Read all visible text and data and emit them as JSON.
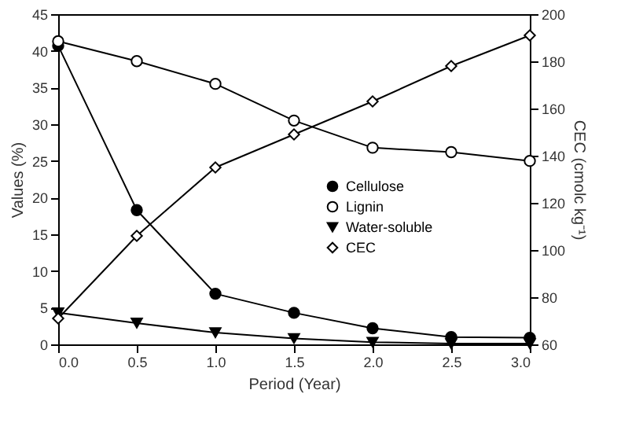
{
  "chart_data": {
    "type": "line",
    "xlabel": "Period (Year)",
    "ylabel": "Values (%)",
    "y2label": "CEC (cmolc kg⁻¹)",
    "x": [
      0,
      0.5,
      1,
      1.5,
      2,
      2.5,
      3
    ],
    "xlim": [
      0,
      3
    ],
    "xticks": [
      {
        "value": 0,
        "label": "0.0"
      },
      {
        "value": 0.5,
        "label": "0.5"
      },
      {
        "value": 1,
        "label": "1.0"
      },
      {
        "value": 1.5,
        "label": "1.5"
      },
      {
        "value": 2,
        "label": "2.0"
      },
      {
        "value": 2.5,
        "label": "2.5"
      },
      {
        "value": 3,
        "label": "3.0"
      }
    ],
    "ylim": [
      0,
      45
    ],
    "yticks": [
      0,
      5,
      10,
      15,
      20,
      25,
      30,
      35,
      40,
      45
    ],
    "y2lim": [
      60,
      200
    ],
    "y2ticks": [
      60,
      80,
      100,
      120,
      140,
      160,
      180,
      200
    ],
    "grid": false,
    "legend": "right",
    "line_style": "solid",
    "series": [
      {
        "name": "Cellulose",
        "color": "#000000",
        "marker": "circle",
        "values": [
          40.7,
          18.3,
          6.9,
          4.3,
          2.2,
          1.0,
          0.9
        ]
      },
      {
        "name": "Lignin",
        "color": "#ffffff",
        "marker": "circle",
        "values": [
          41.3,
          38.6,
          35.5,
          30.5,
          26.8,
          26.2,
          25.0
        ]
      },
      {
        "name": "Water-soluble",
        "color": "#000000",
        "marker": "triangle",
        "values": [
          4.3,
          2.9,
          1.6,
          0.8,
          0.3,
          0.1,
          0.1
        ]
      },
      {
        "name": "CEC",
        "color": "#ffffff",
        "marker": "diamond",
        "axis": "y2",
        "values": [
          71,
          106,
          135,
          149,
          163,
          178,
          191
        ]
      }
    ]
  }
}
